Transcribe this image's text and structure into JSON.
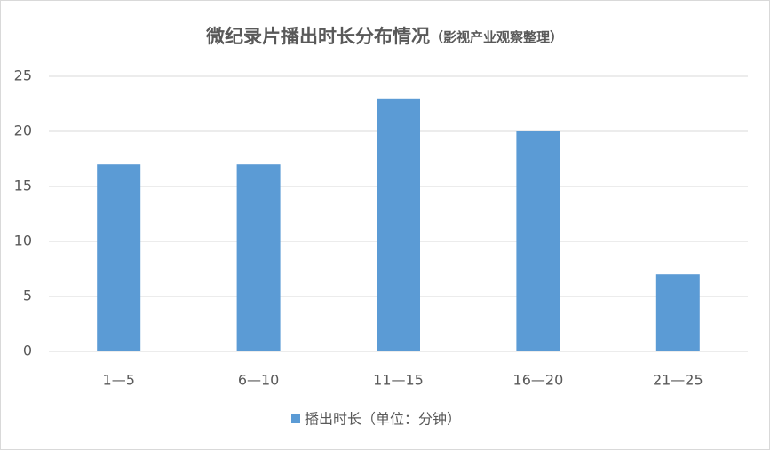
{
  "chart_data": {
    "type": "bar",
    "title": "微纪录片播出时长分布情况",
    "subtitle": "（影视产业观察整理）",
    "categories": [
      "1—5",
      "6—10",
      "11—15",
      "16—20",
      "21—25"
    ],
    "series": [
      {
        "name": "播出时长（单位：分钟）",
        "color": "#5b9bd5",
        "values": [
          17,
          17,
          23,
          20,
          7
        ]
      }
    ],
    "ylim": [
      0,
      25
    ],
    "yticks": [
      0,
      5,
      10,
      15,
      20,
      25
    ],
    "grid": true
  }
}
